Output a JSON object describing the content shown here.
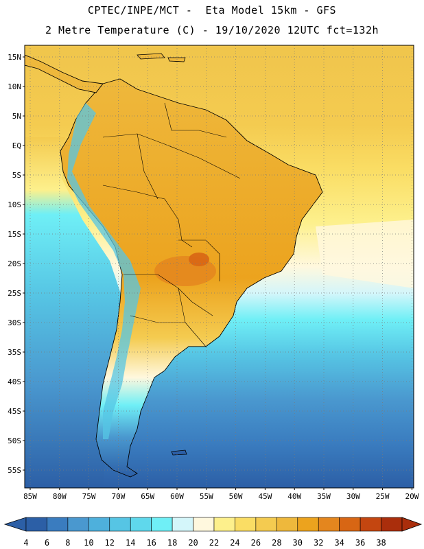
{
  "header": {
    "line1": "CPTEC/INPE/MCT -  Eta Model 15km - GFS",
    "line2": "2 Metre Temperature (C) - 19/10/2020 12UTC fct=132h"
  },
  "map": {
    "lat_labels": [
      "15N",
      "10N",
      "5N",
      "EQ",
      "5S",
      "10S",
      "15S",
      "20S",
      "25S",
      "30S",
      "35S",
      "40S",
      "45S",
      "50S",
      "55S"
    ],
    "lon_labels": [
      "85W",
      "80W",
      "75W",
      "70W",
      "65W",
      "60W",
      "55W",
      "50W",
      "45W",
      "40W",
      "35W",
      "30W",
      "25W",
      "20W"
    ],
    "grid": "dotted"
  },
  "colorbar": {
    "ticks": [
      "4",
      "6",
      "8",
      "10",
      "12",
      "14",
      "16",
      "18",
      "20",
      "22",
      "24",
      "26",
      "28",
      "30",
      "32",
      "34",
      "36",
      "38"
    ],
    "colors": [
      "#2c5fa6",
      "#3a7cbf",
      "#4a98cf",
      "#4eb0dc",
      "#56c5e4",
      "#5fd8ec",
      "#6feff6",
      "#d4f6fa",
      "#fff8de",
      "#fdf08c",
      "#fadd64",
      "#f4cb50",
      "#eeb83c",
      "#eca31e",
      "#e4861e",
      "#d86614",
      "#c44610",
      "#aa2e0c"
    ]
  }
}
